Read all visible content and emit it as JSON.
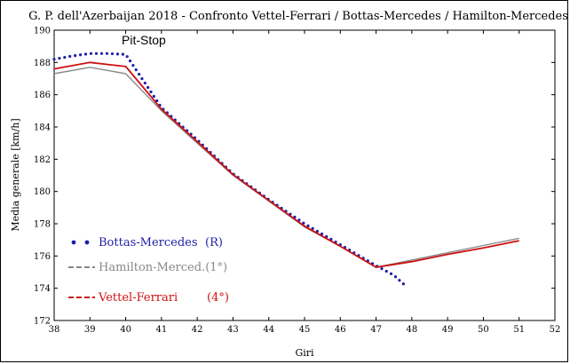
{
  "chart_data": {
    "type": "line",
    "title": "G. P. dell'Azerbaijan 2018 - Confronto Vettel-Ferrari / Bottas-Mercedes / Hamilton-Mercedes",
    "xlabel": "Giri",
    "ylabel": "Media generale  [km/h]",
    "xlim": [
      38,
      52
    ],
    "ylim": [
      172,
      190
    ],
    "xticks": [
      "38",
      "39",
      "40",
      "41",
      "42",
      "43",
      "44",
      "45",
      "46",
      "47",
      "48",
      "49",
      "50",
      "51",
      "52"
    ],
    "yticks": [
      "172",
      "174",
      "176",
      "178",
      "180",
      "182",
      "184",
      "186",
      "188",
      "190"
    ],
    "annotation": "Pit-Stop",
    "series": [
      {
        "name": "Bottas-Mercedes",
        "legend_label": "Bottas-Mercedes",
        "legend_note": "(R)",
        "style": "dotted",
        "color": "#1f1fa8",
        "x": [
          38,
          38.5,
          39,
          39.5,
          40,
          41,
          42,
          43,
          44,
          45,
          46,
          47,
          47.5,
          47.85
        ],
        "y": [
          188.2,
          188.4,
          188.55,
          188.55,
          188.5,
          185.2,
          183.2,
          181.1,
          179.5,
          178.0,
          176.7,
          175.4,
          174.8,
          174.1
        ]
      },
      {
        "name": "Hamilton-Merced.(1°)",
        "legend_label": "Hamilton-Merced.(1°)",
        "legend_note": "",
        "style": "dashed",
        "color": "#888888",
        "x": [
          38,
          39,
          40,
          41,
          42,
          43,
          44,
          45,
          46,
          47,
          48,
          49,
          50,
          51
        ],
        "y": [
          187.3,
          187.7,
          187.3,
          185.0,
          183.0,
          181.0,
          179.4,
          177.8,
          176.6,
          175.3,
          175.75,
          176.2,
          176.65,
          177.1
        ]
      },
      {
        "name": "Vettel-Ferrari",
        "legend_label": "Vettel-Ferrari",
        "legend_note": "(4°)",
        "style": "dashed",
        "color": "#cc1111",
        "x": [
          38,
          39,
          40,
          41,
          42,
          43,
          44,
          45,
          46,
          47,
          48,
          49,
          50,
          51
        ],
        "y": [
          187.6,
          188.0,
          187.75,
          185.1,
          183.1,
          181.05,
          179.45,
          177.85,
          176.6,
          175.3,
          175.65,
          176.1,
          176.5,
          176.95
        ]
      }
    ]
  }
}
